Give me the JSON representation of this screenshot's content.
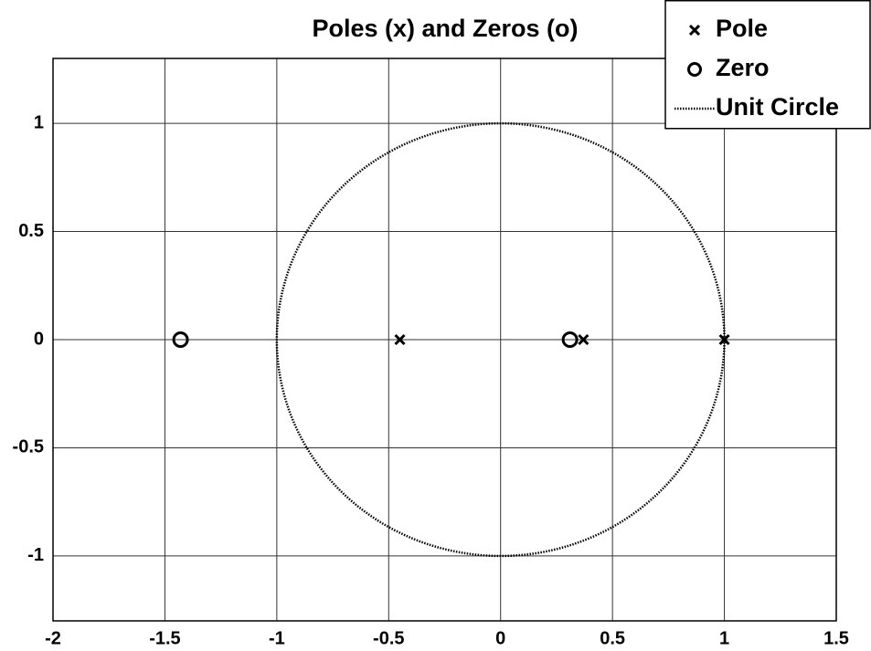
{
  "chart_data": {
    "type": "scatter",
    "title": "Poles (x) and Zeros (o)",
    "xlim": [
      -2,
      1.5
    ],
    "ylim": [
      -1.3,
      1.3
    ],
    "xticks": [
      -2,
      -1.5,
      -1,
      -0.5,
      0,
      0.5,
      1,
      1.5
    ],
    "yticks": [
      -1,
      -0.5,
      0,
      0.5,
      1
    ],
    "grid": true,
    "legend": "upper right",
    "series": [
      {
        "name": "Pole",
        "marker": "x",
        "color": "#000000",
        "x": [
          -0.45,
          0.37,
          1
        ],
        "y": [
          0,
          0,
          0
        ]
      },
      {
        "name": "Zero",
        "marker": "o",
        "color": "#000000",
        "x": [
          -1.43,
          0.31
        ],
        "y": [
          0,
          0
        ]
      },
      {
        "name": "Unit Circle",
        "marker": "dotted",
        "color": "#000000",
        "center": [
          0,
          0
        ],
        "radius": 1
      }
    ]
  }
}
